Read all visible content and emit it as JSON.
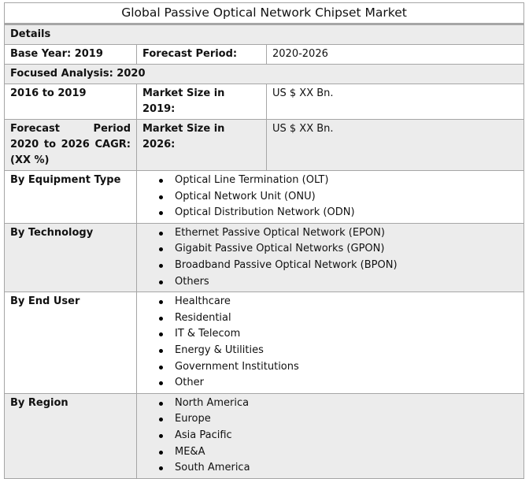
{
  "title": "Global Passive Optical Network Chipset Market",
  "details": "Details",
  "base_year": "Base Year: 2019",
  "forecast_period_label": "Forecast Period:",
  "forecast_period_value": "2020-2026",
  "focused": "Focused Analysis: 2020",
  "hist": "2016 to 2019",
  "ms2019_label": "Market Size in 2019:",
  "ms2019_value": "US $ XX Bn.",
  "cagr": "Forecast Period 2020 to 2026 CAGR: (XX %)",
  "ms2026_label": "Market Size in 2026:",
  "ms2026_value": "US $ XX Bn.",
  "segments": [
    {
      "label": "By Equipment Type",
      "items": [
        "Optical Line Termination (OLT)",
        "Optical Network Unit (ONU)",
        "Optical Distribution Network (ODN)"
      ]
    },
    {
      "label": "By Technology",
      "items": [
        "Ethernet Passive Optical Network (EPON)",
        "Gigabit Passive Optical Networks (GPON)",
        "Broadband Passive Optical Network (BPON)",
        "Others"
      ]
    },
    {
      "label": "By End User",
      "items": [
        "Healthcare",
        "Residential",
        "IT & Telecom",
        "Energy & Utilities",
        "Government Institutions",
        "Other"
      ]
    },
    {
      "label": "By Region",
      "items": [
        "North America",
        "Europe",
        "Asia Pacific",
        "ME&A",
        "South America"
      ]
    }
  ]
}
